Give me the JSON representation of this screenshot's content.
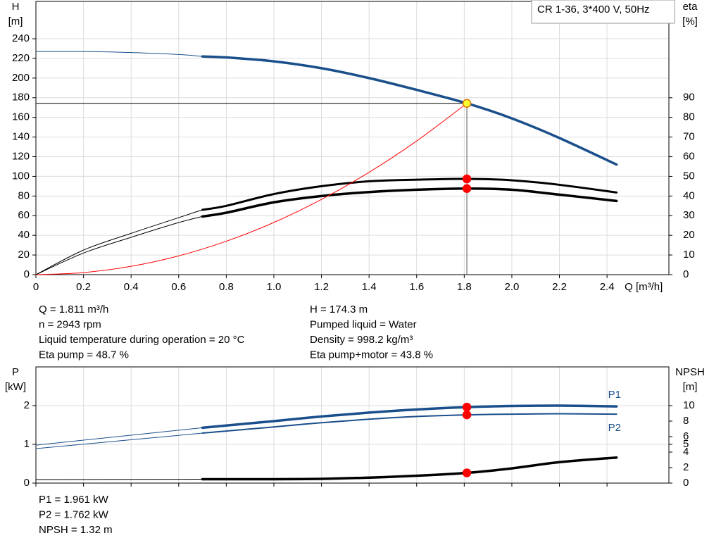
{
  "chart_data": [
    {
      "type": "line",
      "ylabel": "H",
      "yunit": "[m]",
      "y2label": "eta",
      "y2unit": "[%]",
      "xlabel": "Q [m³/h]",
      "legend_box": "CR 1-36, 3*400 V, 50Hz",
      "xlim": [
        0,
        2.66
      ],
      "ylim": [
        0,
        278
      ],
      "y2lim": [
        0,
        139
      ],
      "xticks": [
        0,
        0.2,
        0.4,
        0.6,
        0.8,
        {
          "value": 1,
          "label": "1.0"
        },
        1.2,
        1.4,
        1.6,
        1.8,
        {
          "value": 2,
          "label": "2.0"
        },
        2.2,
        2.4
      ],
      "yticks": [
        0,
        20,
        40,
        60,
        80,
        100,
        120,
        140,
        160,
        180,
        200,
        220,
        240
      ],
      "y2ticks": [
        0,
        10,
        20,
        30,
        40,
        50,
        60,
        70,
        80,
        90
      ],
      "grid": true,
      "series": [
        {
          "color": "#1a4f8b",
          "width": 3.5,
          "thin_before": 0.7,
          "axis": "y",
          "x": [
            0,
            0.2,
            0.4,
            0.6,
            0.7,
            0.8,
            1.0,
            1.2,
            1.4,
            1.6,
            1.811,
            2.0,
            2.2,
            2.44
          ],
          "values": [
            227,
            227,
            226,
            224,
            222,
            221,
            217,
            210,
            200,
            188,
            174.3,
            159,
            139,
            112
          ]
        },
        {
          "color": "#000000",
          "width": 3,
          "thin_before": 0.7,
          "axis": "y2",
          "x": [
            0,
            0.2,
            0.4,
            0.6,
            0.7,
            0.8,
            1.0,
            1.2,
            1.4,
            1.6,
            1.811,
            2.0,
            2.2,
            2.44
          ],
          "values": [
            0,
            12.5,
            21,
            29,
            33,
            35,
            41,
            45,
            47.5,
            48.3,
            48.7,
            48,
            45.7,
            41.8
          ]
        },
        {
          "color": "#000000",
          "width": 3.5,
          "thin_before": 0.7,
          "axis": "y2",
          "x": [
            0,
            0.2,
            0.4,
            0.6,
            0.7,
            0.8,
            1.0,
            1.2,
            1.4,
            1.6,
            1.811,
            2.0,
            2.2,
            2.44
          ],
          "values": [
            0,
            11,
            19,
            26.5,
            29.6,
            31.5,
            36.8,
            40,
            42,
            43.2,
            43.8,
            43.2,
            40.7,
            37.5
          ]
        },
        {
          "color": "#ff0000",
          "width": 1,
          "axis": "y",
          "x": [
            0,
            0.2,
            0.4,
            0.6,
            0.8,
            1.0,
            1.2,
            1.4,
            1.6,
            1.811
          ],
          "values": [
            0,
            2.1,
            8.5,
            19.1,
            34,
            53.1,
            76.5,
            104.1,
            136,
            174.3
          ]
        }
      ],
      "markers": [
        {
          "x": 1.811,
          "value": 174.3,
          "axis": "y",
          "color": "#ffff33",
          "stroke": "#e07000",
          "crosshair": true
        },
        {
          "x": 1.811,
          "value": 48.7,
          "axis": "y2",
          "color": "#ff0000",
          "stroke": "#ff0000"
        },
        {
          "x": 1.811,
          "value": 43.8,
          "axis": "y2",
          "color": "#ff0000",
          "stroke": "#ff0000"
        }
      ]
    },
    {
      "type": "line",
      "ylabel": "P",
      "yunit": "[kW]",
      "y2label": "NPSH",
      "y2unit": "[m]",
      "xlim": [
        0,
        2.66
      ],
      "ylim": [
        0,
        3
      ],
      "y2lim": [
        0,
        15
      ],
      "xticks": [
        0,
        0.2,
        0.4,
        0.6,
        0.8,
        1,
        1.2,
        1.4,
        1.6,
        1.8,
        2,
        2.2,
        2.4
      ],
      "yticks": [
        0,
        1,
        2
      ],
      "y2ticks": [
        0,
        2,
        4,
        5,
        6,
        8,
        10
      ],
      "grid": true,
      "series": [
        {
          "name": "P1",
          "color": "#1a4f8b",
          "width": 3.5,
          "thin_before": 0.7,
          "axis": "y",
          "x": [
            0,
            0.7,
            1.0,
            1.2,
            1.4,
            1.6,
            1.811,
            2.0,
            2.2,
            2.44
          ],
          "values": [
            0.98,
            1.43,
            1.6,
            1.72,
            1.82,
            1.9,
            1.961,
            1.99,
            2.0,
            1.98
          ]
        },
        {
          "name": "P2",
          "color": "#1a4f8b",
          "width": 2,
          "thin_before": 0.7,
          "axis": "y",
          "x": [
            0,
            0.7,
            1.0,
            1.2,
            1.4,
            1.6,
            1.811,
            2.0,
            2.2,
            2.44
          ],
          "values": [
            0.89,
            1.29,
            1.45,
            1.56,
            1.65,
            1.72,
            1.762,
            1.78,
            1.79,
            1.78
          ]
        },
        {
          "color": "#000000",
          "width": 3.5,
          "thin_before": 0.7,
          "axis": "y2",
          "x": [
            0,
            0.7,
            1.0,
            1.2,
            1.4,
            1.6,
            1.811,
            2.0,
            2.2,
            2.44
          ],
          "values": [
            0.45,
            0.5,
            0.5,
            0.55,
            0.7,
            0.95,
            1.32,
            1.9,
            2.7,
            3.3
          ]
        }
      ],
      "markers": [
        {
          "x": 1.811,
          "value": 1.961,
          "axis": "y",
          "color": "#ff0000",
          "stroke": "#ff0000"
        },
        {
          "x": 1.811,
          "value": 1.762,
          "axis": "y",
          "color": "#ff0000",
          "stroke": "#ff0000"
        },
        {
          "x": 1.811,
          "value": 1.32,
          "axis": "y2",
          "color": "#ff0000",
          "stroke": "#ff0000"
        }
      ]
    }
  ],
  "info_left": [
    "Q = 1.811 m³/h",
    "n = 2943 rpm",
    "Liquid temperature during operation = 20 °C",
    "Eta pump = 48.7 %"
  ],
  "info_right": [
    "H = 174.3 m",
    "Pumped liquid = Water",
    "Density = 998.2 kg/m³",
    "Eta pump+motor = 43.8 %"
  ],
  "info_bottom": [
    "P1 = 1.961 kW",
    "P2 = 1.762 kW",
    "NPSH = 1.32 m"
  ]
}
